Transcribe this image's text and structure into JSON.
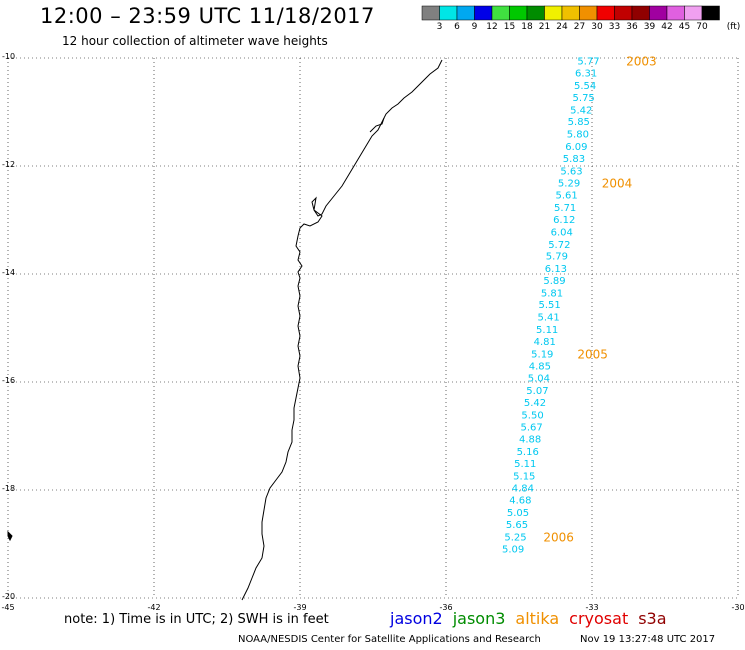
{
  "header": {
    "title": "12:00 – 23:59 UTC 11/18/2017",
    "subtitle": "12 hour collection of altimeter wave heights"
  },
  "legend": {
    "unit": "(ft)",
    "bins": [
      {
        "label": "3",
        "color": "#808080"
      },
      {
        "label": "6",
        "color": "#00e6e6"
      },
      {
        "label": "9",
        "color": "#00a8f0"
      },
      {
        "label": "12",
        "color": "#0000e8"
      },
      {
        "label": "15",
        "color": "#40e040"
      },
      {
        "label": "18",
        "color": "#00c800"
      },
      {
        "label": "21",
        "color": "#008c00"
      },
      {
        "label": "24",
        "color": "#f0f000"
      },
      {
        "label": "27",
        "color": "#f0c000"
      },
      {
        "label": "30",
        "color": "#f09000"
      },
      {
        "label": "33",
        "color": "#f00000"
      },
      {
        "label": "36",
        "color": "#c00000"
      },
      {
        "label": "39",
        "color": "#900000"
      },
      {
        "label": "42",
        "color": "#a000a0"
      },
      {
        "label": "45",
        "color": "#e060e0"
      },
      {
        "label": "70",
        "color": "#f0a0f0"
      },
      {
        "label": "",
        "color": "#000000"
      }
    ]
  },
  "axes": {
    "x_ticks": [
      "-45",
      "-42",
      "-39",
      "-36",
      "-33",
      "-30"
    ],
    "y_ticks": [
      "-10",
      "-12",
      "-14",
      "-16",
      "-18",
      "-20"
    ]
  },
  "track": {
    "color": "#00c8f0",
    "time_color": "#f09000",
    "readings": [
      {
        "lon": -33.3,
        "lat": -10.05,
        "v": "5.77"
      },
      {
        "lon": -33.35,
        "lat": -10.27,
        "v": "6.31"
      },
      {
        "lon": -33.37,
        "lat": -10.5,
        "v": "5.54"
      },
      {
        "lon": -33.4,
        "lat": -10.72,
        "v": "5.75"
      },
      {
        "lon": -33.45,
        "lat": -10.95,
        "v": "5.42"
      },
      {
        "lon": -33.5,
        "lat": -11.17,
        "v": "5.85"
      },
      {
        "lon": -33.52,
        "lat": -11.4,
        "v": "5.80"
      },
      {
        "lon": -33.55,
        "lat": -11.63,
        "v": "6.09"
      },
      {
        "lon": -33.6,
        "lat": -11.85,
        "v": "5.83"
      },
      {
        "lon": -33.65,
        "lat": -12.08,
        "v": "5.63"
      },
      {
        "lon": -33.7,
        "lat": -12.31,
        "v": "5.29"
      },
      {
        "lon": -33.75,
        "lat": -12.53,
        "v": "5.61"
      },
      {
        "lon": -33.78,
        "lat": -12.76,
        "v": "5.71"
      },
      {
        "lon": -33.8,
        "lat": -12.98,
        "v": "6.12"
      },
      {
        "lon": -33.85,
        "lat": -13.21,
        "v": "6.04"
      },
      {
        "lon": -33.9,
        "lat": -13.44,
        "v": "5.72"
      },
      {
        "lon": -33.95,
        "lat": -13.66,
        "v": "5.79"
      },
      {
        "lon": -33.97,
        "lat": -13.89,
        "v": "6.13"
      },
      {
        "lon": -34.0,
        "lat": -14.11,
        "v": "5.89"
      },
      {
        "lon": -34.05,
        "lat": -14.34,
        "v": "5.81"
      },
      {
        "lon": -34.1,
        "lat": -14.56,
        "v": "5.51"
      },
      {
        "lon": -34.12,
        "lat": -14.79,
        "v": "5.41"
      },
      {
        "lon": -34.15,
        "lat": -15.02,
        "v": "5.11"
      },
      {
        "lon": -34.2,
        "lat": -15.24,
        "v": "4.81"
      },
      {
        "lon": -34.25,
        "lat": -15.47,
        "v": "5.19"
      },
      {
        "lon": -34.3,
        "lat": -15.69,
        "v": "4.85"
      },
      {
        "lon": -34.32,
        "lat": -15.92,
        "v": "5.04"
      },
      {
        "lon": -34.35,
        "lat": -16.15,
        "v": "5.07"
      },
      {
        "lon": -34.4,
        "lat": -16.37,
        "v": "5.42"
      },
      {
        "lon": -34.45,
        "lat": -16.6,
        "v": "5.50"
      },
      {
        "lon": -34.47,
        "lat": -16.82,
        "v": "5.67"
      },
      {
        "lon": -34.5,
        "lat": -17.05,
        "v": "4.88"
      },
      {
        "lon": -34.55,
        "lat": -17.28,
        "v": "5.16"
      },
      {
        "lon": -34.6,
        "lat": -17.5,
        "v": "5.11"
      },
      {
        "lon": -34.62,
        "lat": -17.73,
        "v": "5.15"
      },
      {
        "lon": -34.65,
        "lat": -17.95,
        "v": "4.84"
      },
      {
        "lon": -34.7,
        "lat": -18.18,
        "v": "4.68"
      },
      {
        "lon": -34.75,
        "lat": -18.41,
        "v": "5.05"
      },
      {
        "lon": -34.77,
        "lat": -18.63,
        "v": "5.65"
      },
      {
        "lon": -34.8,
        "lat": -18.86,
        "v": "5.25"
      },
      {
        "lon": -34.85,
        "lat": -19.08,
        "v": "5.09"
      }
    ],
    "times": [
      {
        "lon": -32.3,
        "lat": -10.05,
        "t": "2003"
      },
      {
        "lon": -32.8,
        "lat": -12.31,
        "t": "2004"
      },
      {
        "lon": -33.3,
        "lat": -15.47,
        "t": "2005"
      },
      {
        "lon": -34.0,
        "lat": -18.86,
        "t": "2006"
      }
    ]
  },
  "footer": {
    "note": "note: 1) Time is in UTC; 2) SWH is in feet",
    "missions": [
      {
        "name": "jason2",
        "color": "#0000e0"
      },
      {
        "name": "jason3",
        "color": "#008c00"
      },
      {
        "name": "altika",
        "color": "#f09000"
      },
      {
        "name": "cryosat",
        "color": "#e00000"
      },
      {
        "name": "s3a",
        "color": "#900000"
      }
    ],
    "credit": "NOAA/NESDIS Center for Satellite Applications and Research",
    "timestamp": "Nov 19 13:27:48 UTC 2017"
  }
}
